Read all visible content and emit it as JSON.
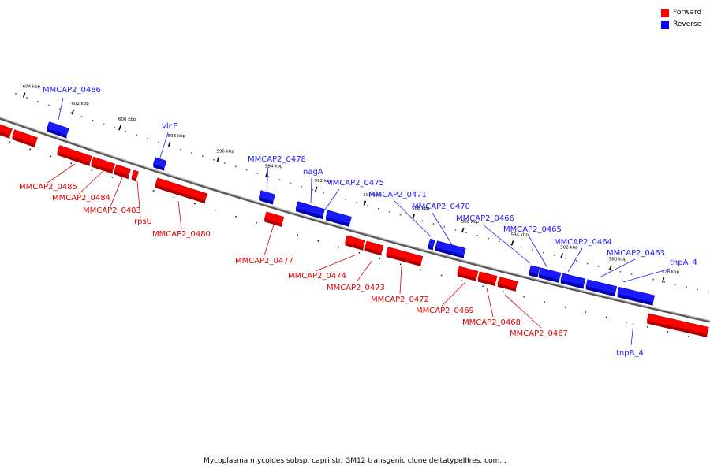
{
  "caption": "Mycoplasma mycoides subsp. capri str. GM12 transgenic clone deltatypeIIIres, com...",
  "legend": [
    {
      "label": "Forward",
      "color": "#ff0000"
    },
    {
      "label": "Reverse",
      "color": "#0000ff"
    }
  ],
  "colors": {
    "forward": "#ff0000",
    "reverse": "#1a1aff",
    "backbone": "#808080",
    "ticks": "#000000"
  },
  "ticks": [
    {
      "label": "604 kbp"
    },
    {
      "label": "602 kbp"
    },
    {
      "label": "600 kbp"
    },
    {
      "label": "598 kbp"
    },
    {
      "label": "596 kbp"
    },
    {
      "label": "594 kbp"
    },
    {
      "label": "592 kbp"
    },
    {
      "label": "590 kbp"
    },
    {
      "label": "588 kbp"
    },
    {
      "label": "586 kbp"
    },
    {
      "label": "584 kbp"
    },
    {
      "label": "582 kbp"
    },
    {
      "label": "580 kbp"
    },
    {
      "label": "578 kbp"
    }
  ],
  "genes": [
    {
      "label": "MMCAP2_0486",
      "strand": "reverse"
    },
    {
      "label": "vlcE",
      "strand": "reverse"
    },
    {
      "label": "MMCAP2_0478",
      "strand": "reverse"
    },
    {
      "label": "nagA",
      "strand": "reverse"
    },
    {
      "label": "MMCAP2_0475",
      "strand": "reverse"
    },
    {
      "label": "MMCAP2_0471",
      "strand": "reverse"
    },
    {
      "label": "MMCAP2_0470",
      "strand": "reverse"
    },
    {
      "label": "MMCAP2_0466",
      "strand": "reverse"
    },
    {
      "label": "MMCAP2_0465",
      "strand": "reverse"
    },
    {
      "label": "MMCAP2_0464",
      "strand": "reverse"
    },
    {
      "label": "MMCAP2_0463",
      "strand": "reverse"
    },
    {
      "label": "tnpA_4",
      "strand": "reverse"
    },
    {
      "label": "tnpB_4",
      "strand": "reverse"
    },
    {
      "label": "MMCAP2_0485",
      "strand": "forward"
    },
    {
      "label": "MMCAP2_0484",
      "strand": "forward"
    },
    {
      "label": "MMCAP2_0483",
      "strand": "forward"
    },
    {
      "label": "rpsU",
      "strand": "forward"
    },
    {
      "label": "MMCAP2_0480",
      "strand": "forward"
    },
    {
      "label": "MMCAP2_0477",
      "strand": "forward"
    },
    {
      "label": "MMCAP2_0474",
      "strand": "forward"
    },
    {
      "label": "MMCAP2_0473",
      "strand": "forward"
    },
    {
      "label": "MMCAP2_0472",
      "strand": "forward"
    },
    {
      "label": "MMCAP2_0469",
      "strand": "forward"
    },
    {
      "label": "MMCAP2_0468",
      "strand": "forward"
    },
    {
      "label": "MMCAP2_0467",
      "strand": "forward"
    }
  ]
}
